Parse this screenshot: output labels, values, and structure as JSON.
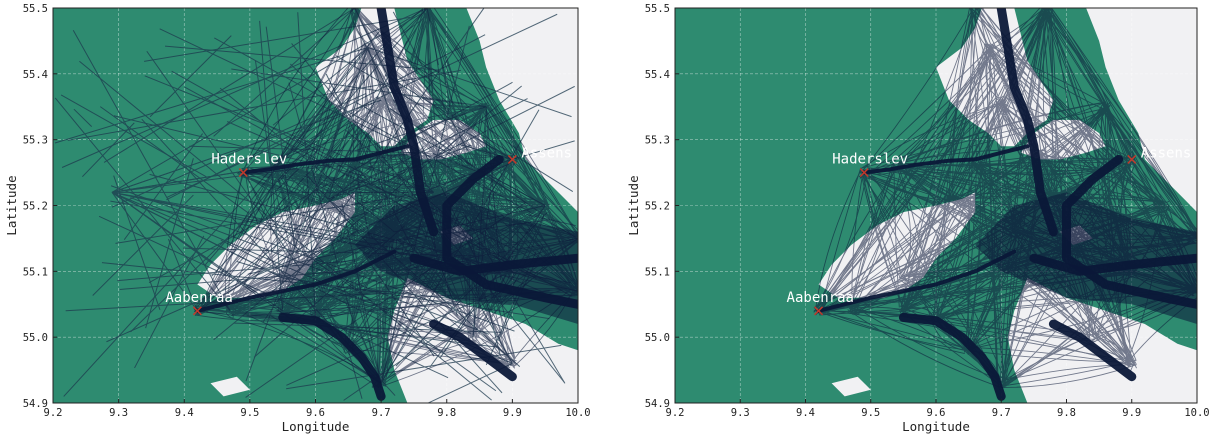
{
  "colors": {
    "sea": "#2e8b70",
    "land": "#f1f1f3",
    "track": "#0b1838",
    "track_stray": "#1d3a4e",
    "marker": "#c0392b",
    "grid": "#ffffff"
  },
  "chart_data": [
    {
      "type": "scatter",
      "title": "",
      "xlabel": "Longitude",
      "ylabel": "Latitude",
      "xlim": [
        9.2,
        10.0
      ],
      "ylim": [
        54.9,
        55.5
      ],
      "xticks": [
        "9.2",
        "9.3",
        "9.4",
        "9.5",
        "9.6",
        "9.7",
        "9.8",
        "9.9",
        "10.0"
      ],
      "yticks": [
        "54.9",
        "55.0",
        "55.1",
        "55.2",
        "55.3",
        "55.4",
        "55.5"
      ],
      "grid": true,
      "series": [
        {
          "points": [
            {
              "label": "Haderslev",
              "x": 9.49,
              "y": 55.25
            },
            {
              "label": "Assens",
              "x": 9.9,
              "y": 55.27
            },
            {
              "label": "Aabenraa",
              "x": 9.42,
              "y": 55.04
            }
          ]
        }
      ],
      "notes_visual": "AIS vessel tracks incl. many long straight outlier segments across land"
    },
    {
      "type": "scatter",
      "title": "",
      "xlabel": "Longitude",
      "ylabel": "Latitude",
      "xlim": [
        9.2,
        10.0
      ],
      "ylim": [
        54.9,
        55.5
      ],
      "xticks": [
        "9.2",
        "9.3",
        "9.4",
        "9.5",
        "9.6",
        "9.7",
        "9.8",
        "9.9",
        "10.0"
      ],
      "yticks": [
        "54.9",
        "55.0",
        "55.1",
        "55.2",
        "55.3",
        "55.4",
        "55.5"
      ],
      "grid": true,
      "series": [
        {
          "points": [
            {
              "label": "Haderslev",
              "x": 9.49,
              "y": 55.25
            },
            {
              "label": "Assens",
              "x": 9.9,
              "y": 55.27
            },
            {
              "label": "Aabenraa",
              "x": 9.42,
              "y": 55.04
            }
          ]
        }
      ],
      "notes_visual": "AIS vessel tracks after outlier removal"
    }
  ]
}
